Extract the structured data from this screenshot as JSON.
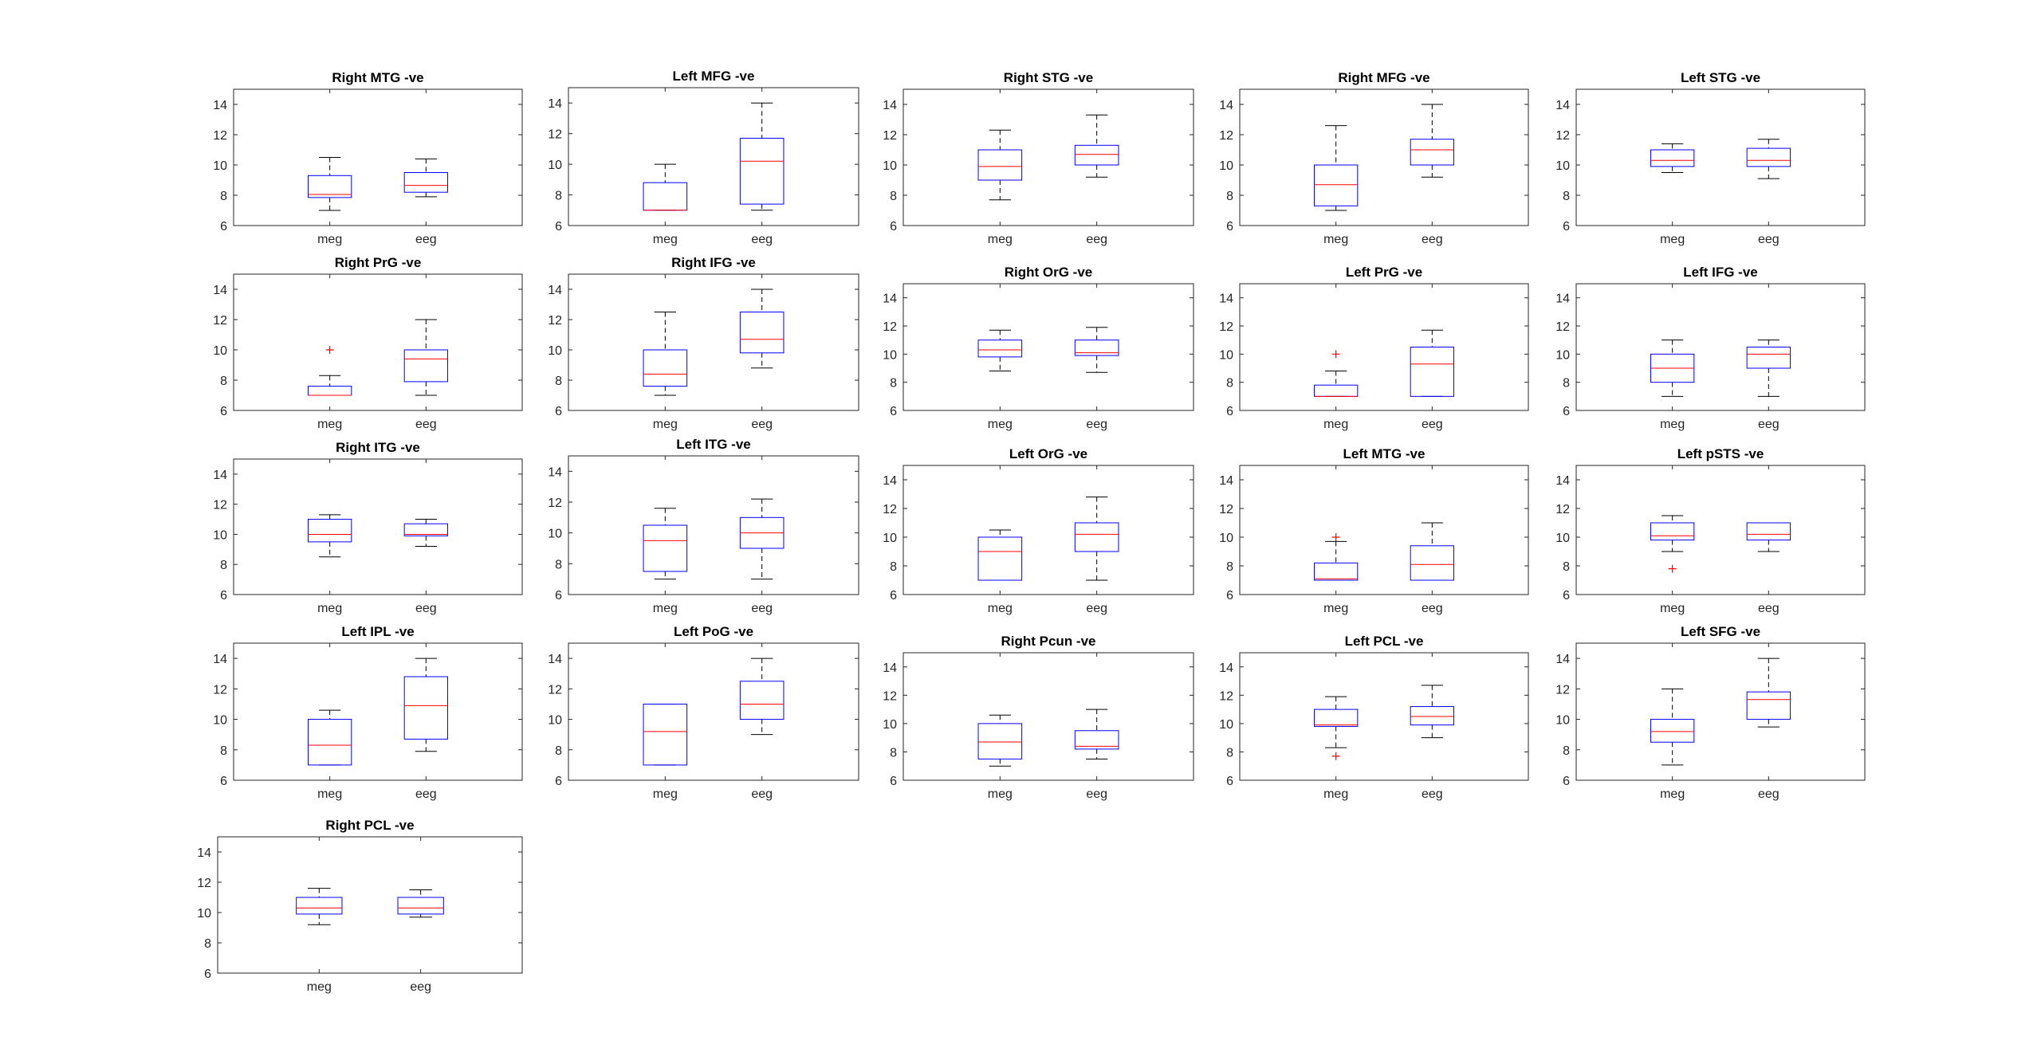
{
  "chart_data": [
    {
      "type": "box",
      "title": "Right MTG -ve",
      "categories": [
        "meg",
        "eeg"
      ],
      "ylim": [
        6,
        15
      ],
      "yticks": [
        6,
        8,
        10,
        12,
        14
      ],
      "boxes": [
        {
          "category": "meg",
          "lower_whisker": 7.0,
          "q1": 7.85,
          "median": 8.05,
          "q3": 9.3,
          "upper_whisker": 10.5,
          "outliers": []
        },
        {
          "category": "eeg",
          "lower_whisker": 7.9,
          "q1": 8.2,
          "median": 8.65,
          "q3": 9.5,
          "upper_whisker": 10.4,
          "outliers": []
        }
      ]
    },
    {
      "type": "box",
      "title": "Left MFG -ve",
      "categories": [
        "meg",
        "eeg"
      ],
      "ylim": [
        6,
        15
      ],
      "yticks": [
        6,
        8,
        10,
        12,
        14
      ],
      "boxes": [
        {
          "category": "meg",
          "lower_whisker": 7.0,
          "q1": 7.0,
          "median": 7.0,
          "q3": 8.8,
          "upper_whisker": 10.0,
          "outliers": []
        },
        {
          "category": "eeg",
          "lower_whisker": 7.0,
          "q1": 7.4,
          "median": 10.2,
          "q3": 11.7,
          "upper_whisker": 14.0,
          "outliers": []
        }
      ]
    },
    {
      "type": "box",
      "title": "Right STG -ve",
      "categories": [
        "meg",
        "eeg"
      ],
      "ylim": [
        6,
        15
      ],
      "yticks": [
        6,
        8,
        10,
        12,
        14
      ],
      "boxes": [
        {
          "category": "meg",
          "lower_whisker": 7.7,
          "q1": 9.0,
          "median": 9.9,
          "q3": 11.0,
          "upper_whisker": 12.3,
          "outliers": []
        },
        {
          "category": "eeg",
          "lower_whisker": 9.2,
          "q1": 10.0,
          "median": 10.7,
          "q3": 11.3,
          "upper_whisker": 13.3,
          "outliers": []
        }
      ]
    },
    {
      "type": "box",
      "title": "Right MFG -ve",
      "categories": [
        "meg",
        "eeg"
      ],
      "ylim": [
        6,
        15
      ],
      "yticks": [
        6,
        8,
        10,
        12,
        14
      ],
      "boxes": [
        {
          "category": "meg",
          "lower_whisker": 7.0,
          "q1": 7.3,
          "median": 8.7,
          "q3": 10.0,
          "upper_whisker": 12.6,
          "outliers": []
        },
        {
          "category": "eeg",
          "lower_whisker": 9.2,
          "q1": 10.0,
          "median": 11.0,
          "q3": 11.7,
          "upper_whisker": 14.0,
          "outliers": []
        }
      ]
    },
    {
      "type": "box",
      "title": "Left STG -ve",
      "categories": [
        "meg",
        "eeg"
      ],
      "ylim": [
        6,
        15
      ],
      "yticks": [
        6,
        8,
        10,
        12,
        14
      ],
      "boxes": [
        {
          "category": "meg",
          "lower_whisker": 9.5,
          "q1": 9.9,
          "median": 10.3,
          "q3": 11.0,
          "upper_whisker": 11.4,
          "outliers": []
        },
        {
          "category": "eeg",
          "lower_whisker": 9.1,
          "q1": 9.9,
          "median": 10.3,
          "q3": 11.1,
          "upper_whisker": 11.7,
          "outliers": []
        }
      ]
    },
    {
      "type": "box",
      "title": "Right PrG -ve",
      "categories": [
        "meg",
        "eeg"
      ],
      "ylim": [
        6,
        15
      ],
      "yticks": [
        6,
        8,
        10,
        12,
        14
      ],
      "boxes": [
        {
          "category": "meg",
          "lower_whisker": 7.0,
          "q1": 7.0,
          "median": 7.0,
          "q3": 7.6,
          "upper_whisker": 8.3,
          "outliers": [
            10.0
          ]
        },
        {
          "category": "eeg",
          "lower_whisker": 7.0,
          "q1": 7.9,
          "median": 9.4,
          "q3": 10.0,
          "upper_whisker": 12.0,
          "outliers": []
        }
      ]
    },
    {
      "type": "box",
      "title": "Right IFG -ve",
      "categories": [
        "meg",
        "eeg"
      ],
      "ylim": [
        6,
        15
      ],
      "yticks": [
        6,
        8,
        10,
        12,
        14
      ],
      "boxes": [
        {
          "category": "meg",
          "lower_whisker": 7.0,
          "q1": 7.6,
          "median": 8.4,
          "q3": 10.0,
          "upper_whisker": 12.5,
          "outliers": []
        },
        {
          "category": "eeg",
          "lower_whisker": 8.8,
          "q1": 9.8,
          "median": 10.7,
          "q3": 12.5,
          "upper_whisker": 14.0,
          "outliers": []
        }
      ]
    },
    {
      "type": "box",
      "title": "Right OrG -ve",
      "categories": [
        "meg",
        "eeg"
      ],
      "ylim": [
        6,
        15
      ],
      "yticks": [
        6,
        8,
        10,
        12,
        14
      ],
      "boxes": [
        {
          "category": "meg",
          "lower_whisker": 8.8,
          "q1": 9.8,
          "median": 10.3,
          "q3": 11.0,
          "upper_whisker": 11.7,
          "outliers": []
        },
        {
          "category": "eeg",
          "lower_whisker": 8.7,
          "q1": 9.9,
          "median": 10.1,
          "q3": 11.0,
          "upper_whisker": 11.9,
          "outliers": []
        }
      ]
    },
    {
      "type": "box",
      "title": "Left PrG -ve",
      "categories": [
        "meg",
        "eeg"
      ],
      "ylim": [
        6,
        15
      ],
      "yticks": [
        6,
        8,
        10,
        12,
        14
      ],
      "boxes": [
        {
          "category": "meg",
          "lower_whisker": 7.0,
          "q1": 7.0,
          "median": 7.0,
          "q3": 7.8,
          "upper_whisker": 8.8,
          "outliers": [
            10.0
          ]
        },
        {
          "category": "eeg",
          "lower_whisker": 7.0,
          "q1": 7.0,
          "median": 9.3,
          "q3": 10.5,
          "upper_whisker": 11.7,
          "outliers": []
        }
      ]
    },
    {
      "type": "box",
      "title": "Left IFG -ve",
      "categories": [
        "meg",
        "eeg"
      ],
      "ylim": [
        6,
        15
      ],
      "yticks": [
        6,
        8,
        10,
        12,
        14
      ],
      "boxes": [
        {
          "category": "meg",
          "lower_whisker": 7.0,
          "q1": 8.0,
          "median": 9.0,
          "q3": 10.0,
          "upper_whisker": 11.0,
          "outliers": []
        },
        {
          "category": "eeg",
          "lower_whisker": 7.0,
          "q1": 9.0,
          "median": 10.0,
          "q3": 10.5,
          "upper_whisker": 11.0,
          "outliers": []
        }
      ]
    },
    {
      "type": "box",
      "title": "Right ITG -ve",
      "categories": [
        "meg",
        "eeg"
      ],
      "ylim": [
        6,
        15
      ],
      "yticks": [
        6,
        8,
        10,
        12,
        14
      ],
      "boxes": [
        {
          "category": "meg",
          "lower_whisker": 8.5,
          "q1": 9.5,
          "median": 10.0,
          "q3": 11.0,
          "upper_whisker": 11.3,
          "outliers": []
        },
        {
          "category": "eeg",
          "lower_whisker": 9.2,
          "q1": 9.9,
          "median": 10.0,
          "q3": 10.7,
          "upper_whisker": 11.0,
          "outliers": []
        }
      ]
    },
    {
      "type": "box",
      "title": "Left ITG -ve",
      "categories": [
        "meg",
        "eeg"
      ],
      "ylim": [
        6,
        15
      ],
      "yticks": [
        6,
        8,
        10,
        12,
        14
      ],
      "boxes": [
        {
          "category": "meg",
          "lower_whisker": 7.0,
          "q1": 7.5,
          "median": 9.5,
          "q3": 10.5,
          "upper_whisker": 11.6,
          "outliers": []
        },
        {
          "category": "eeg",
          "lower_whisker": 7.0,
          "q1": 9.0,
          "median": 10.0,
          "q3": 11.0,
          "upper_whisker": 12.2,
          "outliers": []
        }
      ]
    },
    {
      "type": "box",
      "title": "Left OrG -ve",
      "categories": [
        "meg",
        "eeg"
      ],
      "ylim": [
        6,
        15
      ],
      "yticks": [
        6,
        8,
        10,
        12,
        14
      ],
      "boxes": [
        {
          "category": "meg",
          "lower_whisker": 7.0,
          "q1": 7.0,
          "median": 9.0,
          "q3": 10.0,
          "upper_whisker": 10.5,
          "outliers": []
        },
        {
          "category": "eeg",
          "lower_whisker": 7.0,
          "q1": 9.0,
          "median": 10.2,
          "q3": 11.0,
          "upper_whisker": 12.8,
          "outliers": []
        }
      ]
    },
    {
      "type": "box",
      "title": "Left MTG -ve",
      "categories": [
        "meg",
        "eeg"
      ],
      "ylim": [
        6,
        15
      ],
      "yticks": [
        6,
        8,
        10,
        12,
        14
      ],
      "boxes": [
        {
          "category": "meg",
          "lower_whisker": 7.0,
          "q1": 7.0,
          "median": 7.1,
          "q3": 8.2,
          "upper_whisker": 9.7,
          "outliers": [
            10.0
          ]
        },
        {
          "category": "eeg",
          "lower_whisker": 7.0,
          "q1": 7.0,
          "median": 8.1,
          "q3": 9.4,
          "upper_whisker": 11.0,
          "outliers": []
        }
      ]
    },
    {
      "type": "box",
      "title": "Left pSTS -ve",
      "categories": [
        "meg",
        "eeg"
      ],
      "ylim": [
        6,
        15
      ],
      "yticks": [
        6,
        8,
        10,
        12,
        14
      ],
      "boxes": [
        {
          "category": "meg",
          "lower_whisker": 9.0,
          "q1": 9.8,
          "median": 10.1,
          "q3": 11.0,
          "upper_whisker": 11.5,
          "outliers": [
            7.8
          ]
        },
        {
          "category": "eeg",
          "lower_whisker": 9.0,
          "q1": 9.8,
          "median": 10.2,
          "q3": 11.0,
          "upper_whisker": 11.0,
          "outliers": []
        }
      ]
    },
    {
      "type": "box",
      "title": "Left IPL -ve",
      "categories": [
        "meg",
        "eeg"
      ],
      "ylim": [
        6,
        15
      ],
      "yticks": [
        6,
        8,
        10,
        12,
        14
      ],
      "boxes": [
        {
          "category": "meg",
          "lower_whisker": 7.0,
          "q1": 7.0,
          "median": 8.3,
          "q3": 10.0,
          "upper_whisker": 10.6,
          "outliers": []
        },
        {
          "category": "eeg",
          "lower_whisker": 7.9,
          "q1": 8.7,
          "median": 10.9,
          "q3": 12.8,
          "upper_whisker": 14.0,
          "outliers": []
        }
      ]
    },
    {
      "type": "box",
      "title": "Left PoG -ve",
      "categories": [
        "meg",
        "eeg"
      ],
      "ylim": [
        6,
        15
      ],
      "yticks": [
        6,
        8,
        10,
        12,
        14
      ],
      "boxes": [
        {
          "category": "meg",
          "lower_whisker": 7.0,
          "q1": 7.0,
          "median": 9.2,
          "q3": 11.0,
          "upper_whisker": 11.0,
          "outliers": []
        },
        {
          "category": "eeg",
          "lower_whisker": 9.0,
          "q1": 10.0,
          "median": 11.0,
          "q3": 12.5,
          "upper_whisker": 14.0,
          "outliers": []
        }
      ]
    },
    {
      "type": "box",
      "title": "Right Pcun -ve",
      "categories": [
        "meg",
        "eeg"
      ],
      "ylim": [
        6,
        15
      ],
      "yticks": [
        6,
        8,
        10,
        12,
        14
      ],
      "boxes": [
        {
          "category": "meg",
          "lower_whisker": 7.0,
          "q1": 7.5,
          "median": 8.7,
          "q3": 10.0,
          "upper_whisker": 10.6,
          "outliers": []
        },
        {
          "category": "eeg",
          "lower_whisker": 7.5,
          "q1": 8.2,
          "median": 8.4,
          "q3": 9.5,
          "upper_whisker": 11.0,
          "outliers": []
        }
      ]
    },
    {
      "type": "box",
      "title": "Left PCL -ve",
      "categories": [
        "meg",
        "eeg"
      ],
      "ylim": [
        6,
        15
      ],
      "yticks": [
        6,
        8,
        10,
        12,
        14
      ],
      "boxes": [
        {
          "category": "meg",
          "lower_whisker": 8.3,
          "q1": 9.8,
          "median": 9.9,
          "q3": 11.0,
          "upper_whisker": 11.9,
          "outliers": [
            7.7
          ]
        },
        {
          "category": "eeg",
          "lower_whisker": 9.0,
          "q1": 9.9,
          "median": 10.5,
          "q3": 11.2,
          "upper_whisker": 12.7,
          "outliers": []
        }
      ]
    },
    {
      "type": "box",
      "title": "Left SFG -ve",
      "categories": [
        "meg",
        "eeg"
      ],
      "ylim": [
        6,
        15
      ],
      "yticks": [
        6,
        8,
        10,
        12,
        14
      ],
      "boxes": [
        {
          "category": "meg",
          "lower_whisker": 7.0,
          "q1": 8.5,
          "median": 9.2,
          "q3": 10.0,
          "upper_whisker": 12.0,
          "outliers": []
        },
        {
          "category": "eeg",
          "lower_whisker": 9.5,
          "q1": 10.0,
          "median": 11.3,
          "q3": 11.8,
          "upper_whisker": 14.0,
          "outliers": []
        }
      ]
    },
    {
      "type": "box",
      "title": "Right PCL -ve",
      "categories": [
        "meg",
        "eeg"
      ],
      "ylim": [
        6,
        15
      ],
      "yticks": [
        6,
        8,
        10,
        12,
        14
      ],
      "boxes": [
        {
          "category": "meg",
          "lower_whisker": 9.2,
          "q1": 9.9,
          "median": 10.3,
          "q3": 11.0,
          "upper_whisker": 11.6,
          "outliers": []
        },
        {
          "category": "eeg",
          "lower_whisker": 9.7,
          "q1": 9.9,
          "median": 10.3,
          "q3": 11.0,
          "upper_whisker": 11.5,
          "outliers": []
        }
      ]
    }
  ],
  "colors": {
    "box_edge": "#0000ff",
    "median": "#ff0000",
    "outlier": "#ff0000",
    "whisker": "#000000",
    "axes": "#262626"
  }
}
